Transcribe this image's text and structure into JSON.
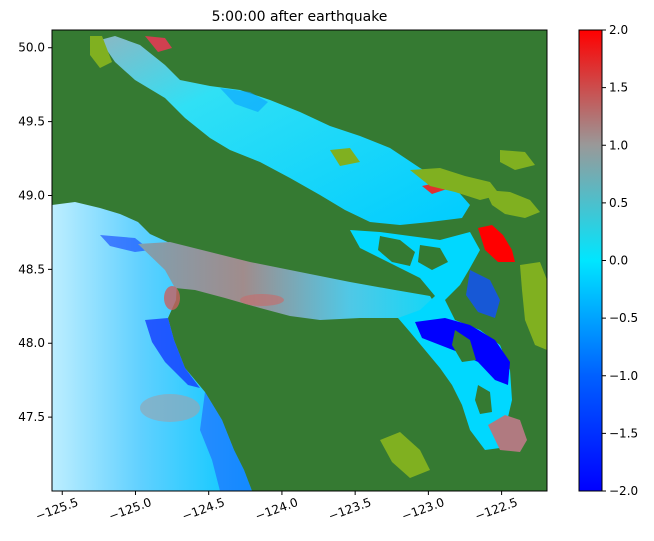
{
  "title": "5:00:00 after earthquake",
  "map": {
    "extent": {
      "lon": [
        -125.57,
        -122.19
      ],
      "lat": [
        47.0,
        50.12
      ]
    },
    "x_ticks": [
      {
        "value": -125.5,
        "label": "−125.5"
      },
      {
        "value": -125.0,
        "label": "−125.0"
      },
      {
        "value": -124.5,
        "label": "−124.5"
      },
      {
        "value": -124.0,
        "label": "−124.0"
      },
      {
        "value": -123.5,
        "label": "−123.5"
      },
      {
        "value": -123.0,
        "label": "−123.0"
      },
      {
        "value": -122.5,
        "label": "−122.5"
      }
    ],
    "y_ticks": [
      {
        "value": 47.5,
        "label": "47.5"
      },
      {
        "value": 48.0,
        "label": "48.0"
      },
      {
        "value": 48.5,
        "label": "48.5"
      },
      {
        "value": 49.0,
        "label": "49.0"
      },
      {
        "value": 49.5,
        "label": "49.5"
      },
      {
        "value": 50.0,
        "label": "50.0"
      }
    ],
    "land_color": "#357a32",
    "shallow_land_color": "#80b020"
  },
  "colorbar": {
    "range": [
      -2.0,
      2.0
    ],
    "stops": [
      {
        "value": -2.0,
        "color": "#0000ff"
      },
      {
        "value": -1.0,
        "color": "#0060ff"
      },
      {
        "value": 0.0,
        "color": "#00e6ff"
      },
      {
        "value": 1.0,
        "color": "#999999"
      },
      {
        "value": 2.0,
        "color": "#ff0000"
      }
    ],
    "ticks": [
      {
        "value": 2.0,
        "label": "2.0"
      },
      {
        "value": 1.5,
        "label": "1.5"
      },
      {
        "value": 1.0,
        "label": "1.0"
      },
      {
        "value": 0.5,
        "label": "0.5"
      },
      {
        "value": 0.0,
        "label": "0.0"
      },
      {
        "value": -0.5,
        "label": "−0.5"
      },
      {
        "value": -1.0,
        "label": "−1.0"
      },
      {
        "value": -1.5,
        "label": "−1.5"
      },
      {
        "value": -2.0,
        "label": "−2.0"
      }
    ]
  }
}
